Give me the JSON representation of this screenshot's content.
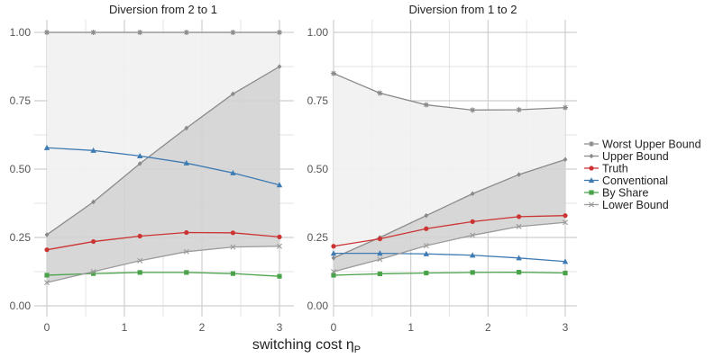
{
  "chart_data": {
    "type": "line",
    "xlabel": "switching cost η",
    "xlabel_sub": "P",
    "x_ticks": [
      0,
      1,
      2,
      3
    ],
    "y_ticks": [
      0.0,
      0.25,
      0.5,
      0.75,
      1.0
    ],
    "y_tick_labels": [
      "0.00",
      "0.25",
      "0.50",
      "0.75",
      "1.00"
    ],
    "xlim": [
      0,
      3
    ],
    "ylim": [
      0,
      1
    ],
    "legend_position": "right",
    "legend": [
      {
        "key": "worst_upper",
        "label": "Worst Upper Bound",
        "color": "#8a8a8a",
        "marker": "asterisk"
      },
      {
        "key": "upper",
        "label": "Upper Bound",
        "color": "#8a8a8a",
        "marker": "diamond"
      },
      {
        "key": "truth",
        "label": "Truth",
        "color": "#cc3333",
        "marker": "circle"
      },
      {
        "key": "conventional",
        "label": "Conventional",
        "color": "#3f7bb3",
        "marker": "triangle"
      },
      {
        "key": "by_share",
        "label": "By Share",
        "color": "#4aa34a",
        "marker": "square"
      },
      {
        "key": "lower",
        "label": "Lower Bound",
        "color": "#9a9a9a",
        "marker": "cross"
      }
    ],
    "panels": [
      {
        "title": "Diversion from 2 to 1",
        "x": [
          0,
          0.6,
          1.2,
          1.8,
          2.4,
          3.0
        ],
        "series": {
          "worst_upper": [
            1.0,
            1.0,
            1.0,
            1.0,
            1.0,
            1.0
          ],
          "upper": [
            0.26,
            0.38,
            0.52,
            0.65,
            0.775,
            0.875
          ],
          "truth": [
            0.205,
            0.235,
            0.255,
            0.268,
            0.267,
            0.252
          ],
          "conventional": [
            0.578,
            0.568,
            0.548,
            0.522,
            0.486,
            0.442
          ],
          "by_share": [
            0.112,
            0.118,
            0.122,
            0.122,
            0.118,
            0.108
          ],
          "lower": [
            0.085,
            0.125,
            0.165,
            0.198,
            0.215,
            0.218
          ]
        }
      },
      {
        "title": "Diversion from 1 to 2",
        "x": [
          0,
          0.6,
          1.2,
          1.8,
          2.4,
          3.0
        ],
        "series": {
          "worst_upper": [
            0.85,
            0.778,
            0.735,
            0.716,
            0.717,
            0.725
          ],
          "upper": [
            0.175,
            0.25,
            0.33,
            0.41,
            0.48,
            0.535
          ],
          "truth": [
            0.218,
            0.245,
            0.282,
            0.308,
            0.326,
            0.33
          ],
          "conventional": [
            0.192,
            0.192,
            0.19,
            0.185,
            0.175,
            0.162
          ],
          "by_share": [
            0.112,
            0.117,
            0.12,
            0.122,
            0.123,
            0.12
          ],
          "lower": [
            0.125,
            0.17,
            0.22,
            0.258,
            0.29,
            0.305
          ]
        }
      }
    ]
  }
}
